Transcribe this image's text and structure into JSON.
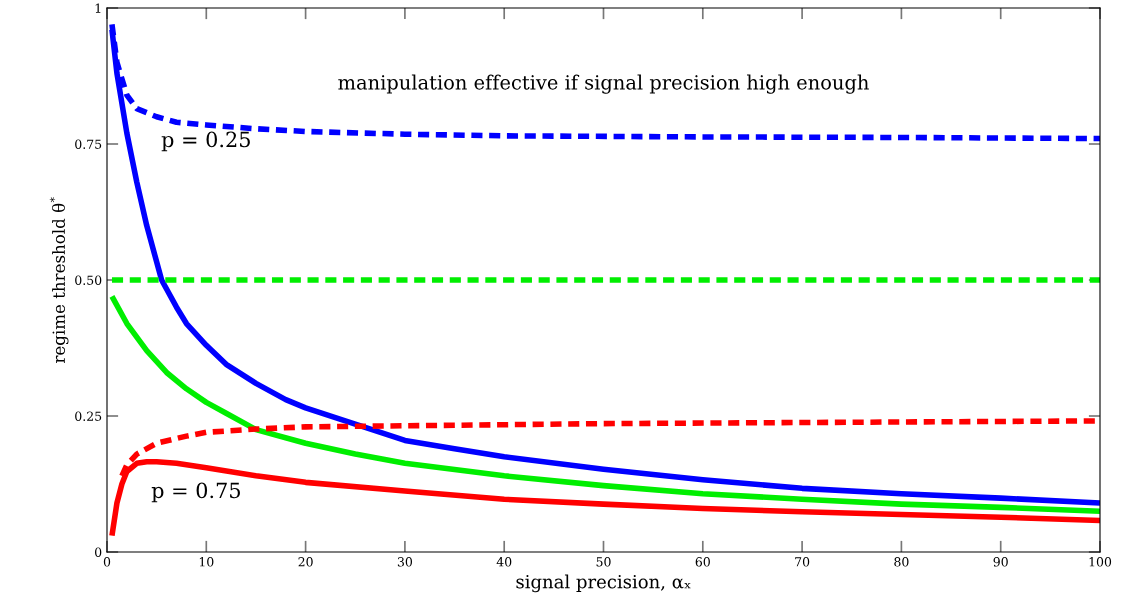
{
  "chart_data": {
    "type": "line",
    "xlabel": "signal precision, αₓ",
    "ylabel": "regime threshold θ$^{*}$",
    "xlim": [
      0,
      100
    ],
    "ylim": [
      0,
      1
    ],
    "xticks": [
      0,
      10,
      20,
      30,
      40,
      50,
      60,
      70,
      80,
      90,
      100
    ],
    "yticks": [
      0,
      {
        "value": 0.25,
        "label": "0.25"
      },
      {
        "value": 0.5,
        "label": "0.50"
      },
      {
        "value": 0.75,
        "label": "0.75"
      },
      1
    ],
    "grid": false,
    "legend": false,
    "marker": "none",
    "annotations": [
      "manipulation effective if signal precision high enough",
      "p = 0.25",
      "p = 0.75"
    ],
    "series": [
      {
        "color": "#0000ff",
        "line_style": "solid",
        "x": [
          0.5,
          1,
          2,
          3,
          4,
          5.5,
          7,
          8,
          10,
          12,
          15,
          18,
          20,
          25,
          30,
          35,
          40,
          50,
          60,
          70,
          80,
          90,
          100
        ],
        "values": [
          0.96,
          0.88,
          0.77,
          0.68,
          0.6,
          0.5,
          0.45,
          0.42,
          0.38,
          0.345,
          0.31,
          0.28,
          0.265,
          0.235,
          0.205,
          0.19,
          0.175,
          0.152,
          0.133,
          0.117,
          0.107,
          0.099,
          0.09
        ]
      },
      {
        "color": "#0000ff",
        "line_style": "dashed",
        "x": [
          0.5,
          1,
          2,
          3,
          5,
          7,
          10,
          15,
          20,
          30,
          40,
          60,
          80,
          100
        ],
        "values": [
          0.97,
          0.9,
          0.84,
          0.815,
          0.8,
          0.79,
          0.785,
          0.778,
          0.773,
          0.768,
          0.765,
          0.763,
          0.762,
          0.76
        ]
      },
      {
        "color": "#00ee00",
        "line_style": "solid",
        "x": [
          0.5,
          2,
          4,
          6,
          8,
          10,
          12,
          15,
          20,
          25,
          30,
          40,
          50,
          60,
          70,
          80,
          90,
          100
        ],
        "values": [
          0.47,
          0.42,
          0.37,
          0.33,
          0.3,
          0.275,
          0.255,
          0.225,
          0.2,
          0.18,
          0.163,
          0.14,
          0.122,
          0.107,
          0.097,
          0.088,
          0.082,
          0.075
        ]
      },
      {
        "color": "#00ee00",
        "line_style": "dashed",
        "x": [
          0.5,
          100
        ],
        "values": [
          0.5,
          0.5
        ]
      },
      {
        "color": "#ff0000",
        "line_style": "solid",
        "x": [
          0.5,
          1,
          1.5,
          2,
          3,
          4,
          5,
          7,
          10,
          15,
          20,
          30,
          40,
          50,
          60,
          70,
          80,
          90,
          100
        ],
        "values": [
          0.03,
          0.09,
          0.125,
          0.148,
          0.163,
          0.166,
          0.166,
          0.163,
          0.155,
          0.14,
          0.128,
          0.112,
          0.097,
          0.088,
          0.08,
          0.074,
          0.069,
          0.064,
          0.058
        ]
      },
      {
        "color": "#ff0000",
        "line_style": "dashed",
        "x": [
          1.5,
          2,
          3,
          5,
          8,
          10,
          15,
          20,
          30,
          50,
          70,
          100
        ],
        "values": [
          0.14,
          0.16,
          0.18,
          0.2,
          0.213,
          0.22,
          0.226,
          0.23,
          0.232,
          0.236,
          0.238,
          0.241
        ]
      }
    ]
  }
}
